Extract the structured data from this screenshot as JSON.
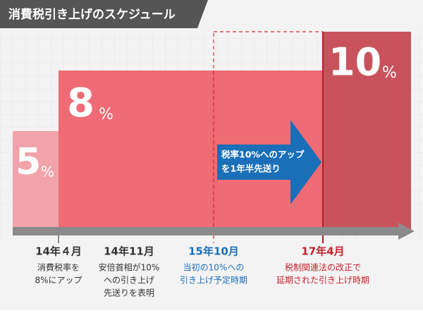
{
  "header": {
    "title": "消費税引き上げのスケジュール"
  },
  "rates": [
    {
      "number": "5",
      "unit": "%"
    },
    {
      "number": "8",
      "unit": "%"
    },
    {
      "number": "10",
      "unit": "%"
    }
  ],
  "arrow_note": [
    "税率10%へのアップ",
    "を1年半先送り"
  ],
  "milestones": [
    {
      "date": "14年４月",
      "description": [
        "消費税率を",
        "8%にアップ"
      ]
    },
    {
      "date": "14年11月",
      "description": [
        "安倍首相が10%",
        "への引き上げ",
        "先送りを表明"
      ]
    },
    {
      "date": "15年10月",
      "description": [
        "当初の10%への",
        "引き上げ予定時期"
      ]
    },
    {
      "date": "17年4月",
      "description": [
        "税制関連法の改正で",
        "延期された引き上げ時期"
      ]
    }
  ]
}
